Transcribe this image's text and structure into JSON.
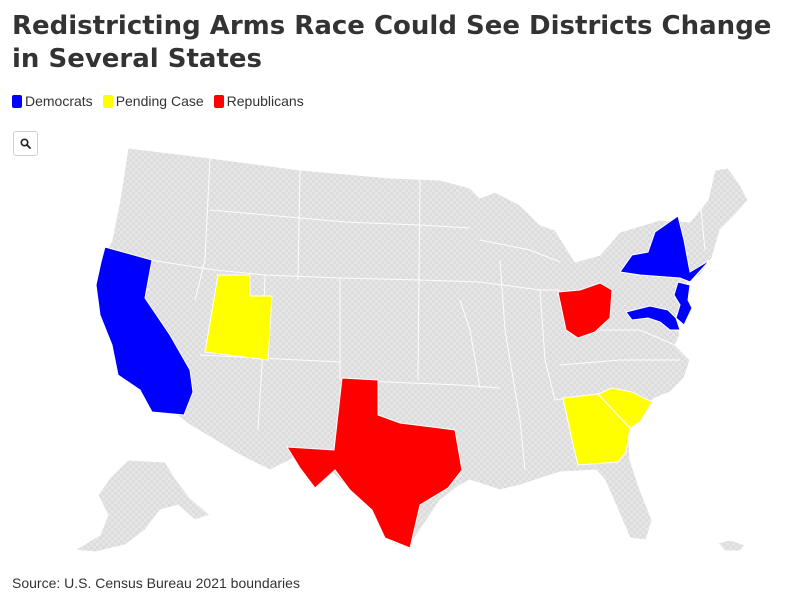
{
  "title": "Redistricting Arms Race Could See Districts Change in Several States",
  "legend": [
    {
      "label": "Democrats",
      "color": "#0000ff"
    },
    {
      "label": "Pending Case",
      "color": "#ffff00"
    },
    {
      "label": "Republicans",
      "color": "#ff0000"
    }
  ],
  "zoom_icon": "search-icon",
  "map": {
    "base_color": "#e3e3e3",
    "border_color": "#ffffff",
    "states": {
      "democrats": [
        "California",
        "New York",
        "New Jersey",
        "Maryland"
      ],
      "pending_case": [
        "Utah",
        "Georgia",
        "South Carolina"
      ],
      "republicans": [
        "Texas",
        "Ohio"
      ]
    }
  },
  "source": "Source: U.S. Census Bureau 2021 boundaries"
}
